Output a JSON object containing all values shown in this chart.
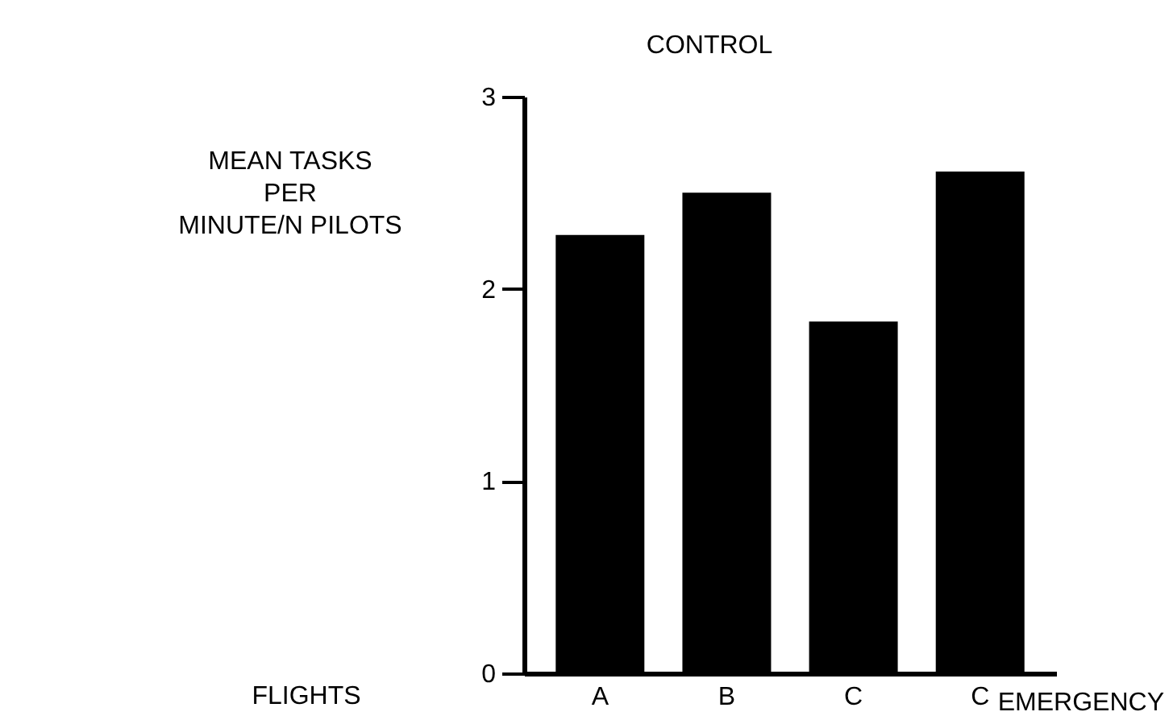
{
  "chart_data": {
    "type": "bar",
    "title": "CONTROL",
    "ylabel": "MEAN TASKS\nPER\nMINUTE/N PILOTS",
    "xlabel": "FLIGHTS",
    "annotations": [
      "EMERGENCY"
    ],
    "categories": [
      "A",
      "B",
      "C",
      "C"
    ],
    "values": [
      2.28,
      2.5,
      1.83,
      2.61
    ],
    "color": "#000000",
    "ylim": [
      0,
      3
    ],
    "yticks": [
      0,
      1,
      2,
      3
    ],
    "grid": false
  }
}
